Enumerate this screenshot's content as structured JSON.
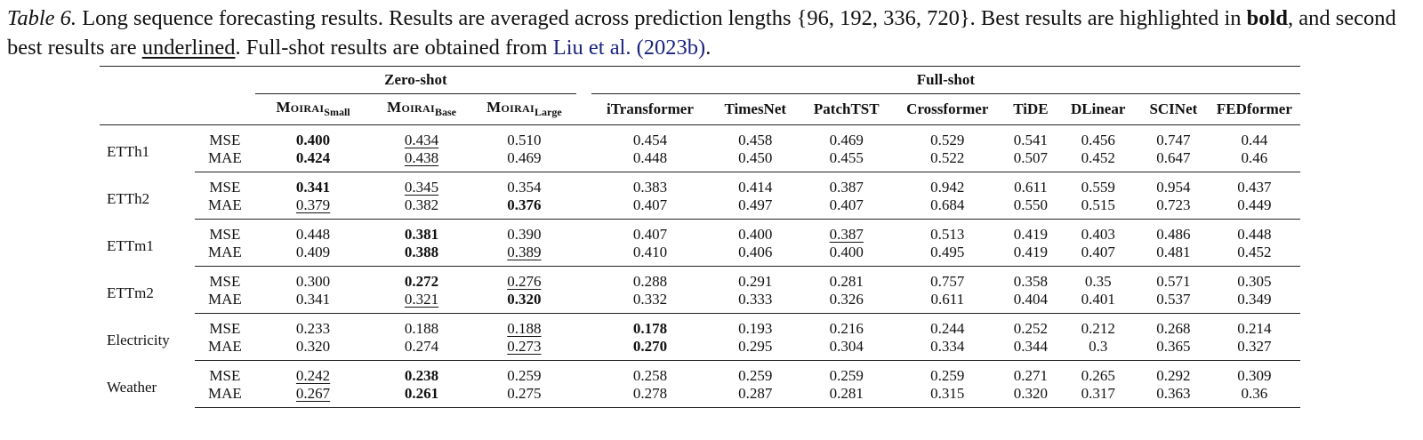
{
  "caption": {
    "label": "Table 6.",
    "part1": " Long sequence forecasting results. Results are averaged across prediction lengths {96, 192, 336, 720}. Best results are highlighted in ",
    "bold_word": "bold",
    "part2": ", and second best results are ",
    "underlined_word": "underlined",
    "part3": ". Full-shot results are obtained from ",
    "citation": "Liu et al. (2023b)",
    "part4": "."
  },
  "table": {
    "group_zero_shot": "Zero-shot",
    "group_full_shot": "Full-shot",
    "moirai": "Moirai",
    "moirai_subs": [
      "Small",
      "Base",
      "Large"
    ],
    "full_shot_models": [
      "iTransformer",
      "TimesNet",
      "PatchTST",
      "Crossformer",
      "TiDE",
      "DLinear",
      "SCINet",
      "FEDformer"
    ],
    "rows": [
      {
        "dataset": "ETTh1",
        "mse": [
          {
            "v": "0.400",
            "s": "b"
          },
          {
            "v": "0.434",
            "s": "u"
          },
          {
            "v": "0.510",
            "s": ""
          },
          {
            "v": "0.454",
            "s": ""
          },
          {
            "v": "0.458",
            "s": ""
          },
          {
            "v": "0.469",
            "s": ""
          },
          {
            "v": "0.529",
            "s": ""
          },
          {
            "v": "0.541",
            "s": ""
          },
          {
            "v": "0.456",
            "s": ""
          },
          {
            "v": "0.747",
            "s": ""
          },
          {
            "v": "0.44",
            "s": ""
          }
        ],
        "mae": [
          {
            "v": "0.424",
            "s": "b"
          },
          {
            "v": "0.438",
            "s": "u"
          },
          {
            "v": "0.469",
            "s": ""
          },
          {
            "v": "0.448",
            "s": ""
          },
          {
            "v": "0.450",
            "s": ""
          },
          {
            "v": "0.455",
            "s": ""
          },
          {
            "v": "0.522",
            "s": ""
          },
          {
            "v": "0.507",
            "s": ""
          },
          {
            "v": "0.452",
            "s": ""
          },
          {
            "v": "0.647",
            "s": ""
          },
          {
            "v": "0.46",
            "s": ""
          }
        ]
      },
      {
        "dataset": "ETTh2",
        "mse": [
          {
            "v": "0.341",
            "s": "b"
          },
          {
            "v": "0.345",
            "s": "u"
          },
          {
            "v": "0.354",
            "s": ""
          },
          {
            "v": "0.383",
            "s": ""
          },
          {
            "v": "0.414",
            "s": ""
          },
          {
            "v": "0.387",
            "s": ""
          },
          {
            "v": "0.942",
            "s": ""
          },
          {
            "v": "0.611",
            "s": ""
          },
          {
            "v": "0.559",
            "s": ""
          },
          {
            "v": "0.954",
            "s": ""
          },
          {
            "v": "0.437",
            "s": ""
          }
        ],
        "mae": [
          {
            "v": "0.379",
            "s": "u"
          },
          {
            "v": "0.382",
            "s": ""
          },
          {
            "v": "0.376",
            "s": "b"
          },
          {
            "v": "0.407",
            "s": ""
          },
          {
            "v": "0.497",
            "s": ""
          },
          {
            "v": "0.407",
            "s": ""
          },
          {
            "v": "0.684",
            "s": ""
          },
          {
            "v": "0.550",
            "s": ""
          },
          {
            "v": "0.515",
            "s": ""
          },
          {
            "v": "0.723",
            "s": ""
          },
          {
            "v": "0.449",
            "s": ""
          }
        ]
      },
      {
        "dataset": "ETTm1",
        "mse": [
          {
            "v": "0.448",
            "s": ""
          },
          {
            "v": "0.381",
            "s": "b"
          },
          {
            "v": "0.390",
            "s": ""
          },
          {
            "v": "0.407",
            "s": ""
          },
          {
            "v": "0.400",
            "s": ""
          },
          {
            "v": "0.387",
            "s": "u"
          },
          {
            "v": "0.513",
            "s": ""
          },
          {
            "v": "0.419",
            "s": ""
          },
          {
            "v": "0.403",
            "s": ""
          },
          {
            "v": "0.486",
            "s": ""
          },
          {
            "v": "0.448",
            "s": ""
          }
        ],
        "mae": [
          {
            "v": "0.409",
            "s": ""
          },
          {
            "v": "0.388",
            "s": "b"
          },
          {
            "v": "0.389",
            "s": "u"
          },
          {
            "v": "0.410",
            "s": ""
          },
          {
            "v": "0.406",
            "s": ""
          },
          {
            "v": "0.400",
            "s": ""
          },
          {
            "v": "0.495",
            "s": ""
          },
          {
            "v": "0.419",
            "s": ""
          },
          {
            "v": "0.407",
            "s": ""
          },
          {
            "v": "0.481",
            "s": ""
          },
          {
            "v": "0.452",
            "s": ""
          }
        ]
      },
      {
        "dataset": "ETTm2",
        "mse": [
          {
            "v": "0.300",
            "s": ""
          },
          {
            "v": "0.272",
            "s": "b"
          },
          {
            "v": "0.276",
            "s": "u"
          },
          {
            "v": "0.288",
            "s": ""
          },
          {
            "v": "0.291",
            "s": ""
          },
          {
            "v": "0.281",
            "s": ""
          },
          {
            "v": "0.757",
            "s": ""
          },
          {
            "v": "0.358",
            "s": ""
          },
          {
            "v": "0.35",
            "s": ""
          },
          {
            "v": "0.571",
            "s": ""
          },
          {
            "v": "0.305",
            "s": ""
          }
        ],
        "mae": [
          {
            "v": "0.341",
            "s": ""
          },
          {
            "v": "0.321",
            "s": "u"
          },
          {
            "v": "0.320",
            "s": "b"
          },
          {
            "v": "0.332",
            "s": ""
          },
          {
            "v": "0.333",
            "s": ""
          },
          {
            "v": "0.326",
            "s": ""
          },
          {
            "v": "0.611",
            "s": ""
          },
          {
            "v": "0.404",
            "s": ""
          },
          {
            "v": "0.401",
            "s": ""
          },
          {
            "v": "0.537",
            "s": ""
          },
          {
            "v": "0.349",
            "s": ""
          }
        ]
      },
      {
        "dataset": "Electricity",
        "mse": [
          {
            "v": "0.233",
            "s": ""
          },
          {
            "v": "0.188",
            "s": ""
          },
          {
            "v": "0.188",
            "s": "u"
          },
          {
            "v": "0.178",
            "s": "b"
          },
          {
            "v": "0.193",
            "s": ""
          },
          {
            "v": "0.216",
            "s": ""
          },
          {
            "v": "0.244",
            "s": ""
          },
          {
            "v": "0.252",
            "s": ""
          },
          {
            "v": "0.212",
            "s": ""
          },
          {
            "v": "0.268",
            "s": ""
          },
          {
            "v": "0.214",
            "s": ""
          }
        ],
        "mae": [
          {
            "v": "0.320",
            "s": ""
          },
          {
            "v": "0.274",
            "s": ""
          },
          {
            "v": "0.273",
            "s": "u"
          },
          {
            "v": "0.270",
            "s": "b"
          },
          {
            "v": "0.295",
            "s": ""
          },
          {
            "v": "0.304",
            "s": ""
          },
          {
            "v": "0.334",
            "s": ""
          },
          {
            "v": "0.344",
            "s": ""
          },
          {
            "v": "0.3",
            "s": ""
          },
          {
            "v": "0.365",
            "s": ""
          },
          {
            "v": "0.327",
            "s": ""
          }
        ]
      },
      {
        "dataset": "Weather",
        "mse": [
          {
            "v": "0.242",
            "s": "u"
          },
          {
            "v": "0.238",
            "s": "b"
          },
          {
            "v": "0.259",
            "s": ""
          },
          {
            "v": "0.258",
            "s": ""
          },
          {
            "v": "0.259",
            "s": ""
          },
          {
            "v": "0.259",
            "s": ""
          },
          {
            "v": "0.259",
            "s": ""
          },
          {
            "v": "0.271",
            "s": ""
          },
          {
            "v": "0.265",
            "s": ""
          },
          {
            "v": "0.292",
            "s": ""
          },
          {
            "v": "0.309",
            "s": ""
          }
        ],
        "mae": [
          {
            "v": "0.267",
            "s": "u"
          },
          {
            "v": "0.261",
            "s": "b"
          },
          {
            "v": "0.275",
            "s": ""
          },
          {
            "v": "0.278",
            "s": ""
          },
          {
            "v": "0.287",
            "s": ""
          },
          {
            "v": "0.281",
            "s": ""
          },
          {
            "v": "0.315",
            "s": ""
          },
          {
            "v": "0.320",
            "s": ""
          },
          {
            "v": "0.317",
            "s": ""
          },
          {
            "v": "0.363",
            "s": ""
          },
          {
            "v": "0.36",
            "s": ""
          }
        ]
      }
    ],
    "metric_mse": "MSE",
    "metric_mae": "MAE"
  }
}
